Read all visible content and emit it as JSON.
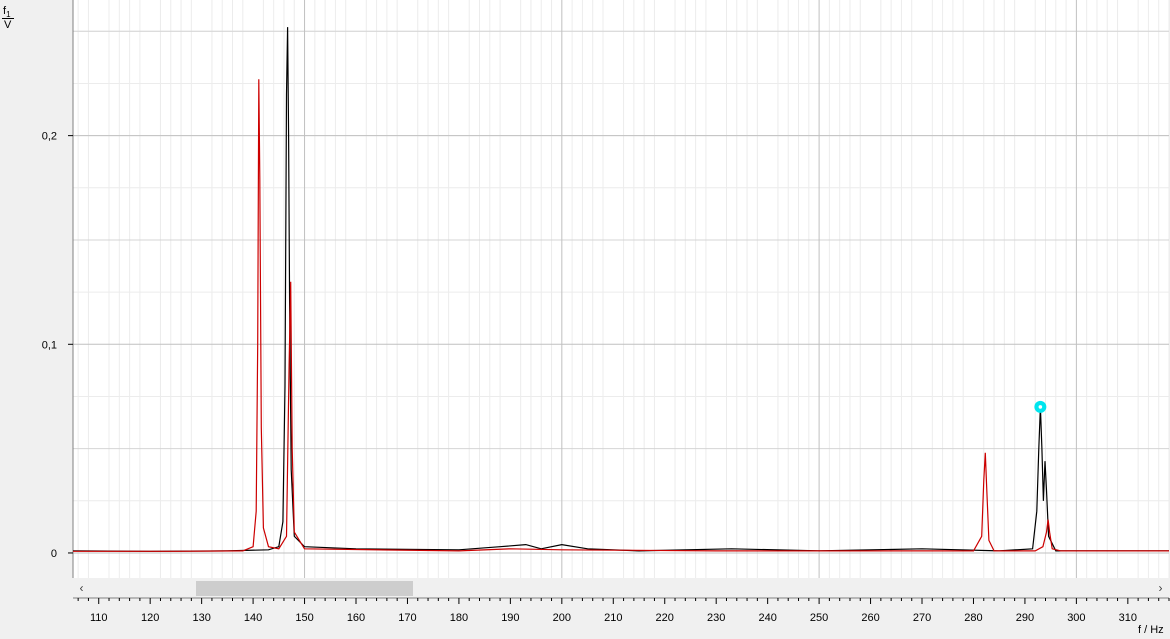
{
  "chart_data": {
    "type": "line",
    "ylabel": {
      "symbol": "f",
      "subscript": "1",
      "unit": "V"
    },
    "xlabel": "f / Hz",
    "xlim": [
      105,
      318
    ],
    "ylim": [
      -0.012,
      0.265
    ],
    "x_ticks": [
      110,
      120,
      130,
      140,
      150,
      160,
      170,
      180,
      190,
      200,
      210,
      220,
      230,
      240,
      250,
      260,
      270,
      280,
      290,
      300,
      310
    ],
    "y_ticks": [
      0,
      0.1,
      0.2
    ],
    "y_tick_labels": [
      "0",
      "0,1",
      "0,2"
    ],
    "grid": true,
    "series": [
      {
        "color": "#000000",
        "points": [
          [
            105,
            0.001
          ],
          [
            120,
            0.0008
          ],
          [
            135,
            0.001
          ],
          [
            143,
            0.0015
          ],
          [
            145,
            0.003
          ],
          [
            145.8,
            0.015
          ],
          [
            146.2,
            0.08
          ],
          [
            146.5,
            0.22
          ],
          [
            146.7,
            0.252
          ],
          [
            146.9,
            0.2
          ],
          [
            147.1,
            0.12
          ],
          [
            147.4,
            0.04
          ],
          [
            148,
            0.008
          ],
          [
            150,
            0.003
          ],
          [
            160,
            0.002
          ],
          [
            180,
            0.0015
          ],
          [
            188,
            0.003
          ],
          [
            193,
            0.004
          ],
          [
            196,
            0.002
          ],
          [
            200,
            0.004
          ],
          [
            205,
            0.002
          ],
          [
            215,
            0.001
          ],
          [
            233,
            0.002
          ],
          [
            250,
            0.001
          ],
          [
            270,
            0.002
          ],
          [
            285,
            0.001
          ],
          [
            291.5,
            0.002
          ],
          [
            292.3,
            0.02
          ],
          [
            292.7,
            0.05
          ],
          [
            293,
            0.07
          ],
          [
            293.3,
            0.05
          ],
          [
            293.6,
            0.025
          ],
          [
            293.9,
            0.044
          ],
          [
            294.2,
            0.03
          ],
          [
            294.6,
            0.008
          ],
          [
            296,
            0.001
          ],
          [
            318,
            0.001
          ]
        ]
      },
      {
        "color": "#cc0000",
        "points": [
          [
            105,
            0.0008
          ],
          [
            125,
            0.0008
          ],
          [
            138,
            0.001
          ],
          [
            140,
            0.003
          ],
          [
            140.6,
            0.02
          ],
          [
            140.9,
            0.1
          ],
          [
            141.1,
            0.227
          ],
          [
            141.3,
            0.18
          ],
          [
            141.6,
            0.06
          ],
          [
            142,
            0.012
          ],
          [
            143,
            0.003
          ],
          [
            145,
            0.002
          ],
          [
            146.5,
            0.008
          ],
          [
            147,
            0.09
          ],
          [
            147.3,
            0.13
          ],
          [
            147.6,
            0.05
          ],
          [
            148,
            0.01
          ],
          [
            150,
            0.002
          ],
          [
            180,
            0.001
          ],
          [
            190,
            0.002
          ],
          [
            200,
            0.0015
          ],
          [
            230,
            0.001
          ],
          [
            270,
            0.001
          ],
          [
            280,
            0.001
          ],
          [
            281.6,
            0.008
          ],
          [
            282,
            0.035
          ],
          [
            282.3,
            0.048
          ],
          [
            282.6,
            0.03
          ],
          [
            283,
            0.006
          ],
          [
            284,
            0.001
          ],
          [
            292,
            0.001
          ],
          [
            293.5,
            0.003
          ],
          [
            294.2,
            0.01
          ],
          [
            294.5,
            0.016
          ],
          [
            294.8,
            0.01
          ],
          [
            295.3,
            0.002
          ],
          [
            297,
            0.001
          ],
          [
            318,
            0.001
          ]
        ]
      }
    ],
    "marker": {
      "x": 293,
      "y": 0.07,
      "color": "#00e5ee"
    }
  },
  "scrollbar": {
    "left_arrow": "‹",
    "right_arrow": "›",
    "thumb_from": 129,
    "thumb_to": 171
  }
}
